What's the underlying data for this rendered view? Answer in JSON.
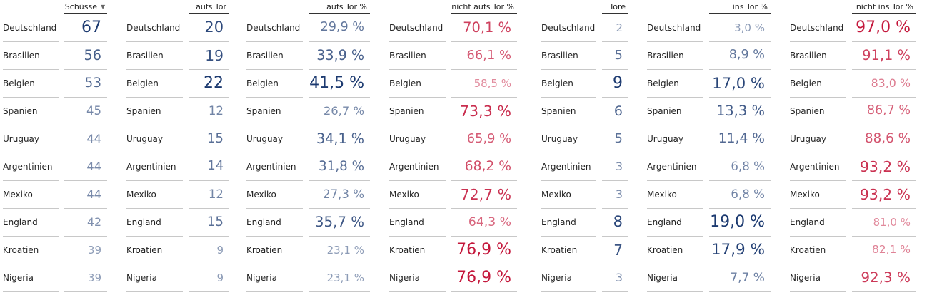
{
  "tables": [
    {
      "header": "Schüsse",
      "color": "#1c3a70",
      "rows": [
        [
          "Deutschland",
          "67"
        ],
        [
          "Brasilien",
          "56"
        ],
        [
          "Belgien",
          "53"
        ],
        [
          "Spanien",
          "45"
        ],
        [
          "Uruguay",
          "44"
        ],
        [
          "Argentinien",
          "44"
        ],
        [
          "Mexiko",
          "44"
        ],
        [
          "England",
          "42"
        ],
        [
          "Kroatien",
          "39"
        ],
        [
          "Nigeria",
          "39"
        ]
      ]
    },
    {
      "header": "aufs Tor",
      "color": "#1c3a70",
      "rows": [
        [
          "Deutschland",
          "20"
        ],
        [
          "Brasilien",
          "19"
        ],
        [
          "Belgien",
          "22"
        ],
        [
          "Spanien",
          "12"
        ],
        [
          "Uruguay",
          "15"
        ],
        [
          "Argentinien",
          "14"
        ],
        [
          "Mexiko",
          "12"
        ],
        [
          "England",
          "15"
        ],
        [
          "Kroatien",
          "9"
        ],
        [
          "Nigeria",
          "9"
        ]
      ]
    },
    {
      "header": "aufs Tor %",
      "color": "#1c3a70",
      "rows": [
        [
          "Deutschland",
          "29,9 %"
        ],
        [
          "Brasilien",
          "33,9 %"
        ],
        [
          "Belgien",
          "41,5 %"
        ],
        [
          "Spanien",
          "26,7 %"
        ],
        [
          "Uruguay",
          "34,1 %"
        ],
        [
          "Argentinien",
          "31,8 %"
        ],
        [
          "Mexiko",
          "27,3 %"
        ],
        [
          "England",
          "35,7 %"
        ],
        [
          "Kroatien",
          "23,1 %"
        ],
        [
          "Nigeria",
          "23,1 %"
        ]
      ]
    },
    {
      "header": "nicht aufs Tor %",
      "color": "#c4173b",
      "rows": [
        [
          "Deutschland",
          "70,1 %"
        ],
        [
          "Brasilien",
          "66,1 %"
        ],
        [
          "Belgien",
          "58,5 %"
        ],
        [
          "Spanien",
          "73,3 %"
        ],
        [
          "Uruguay",
          "65,9 %"
        ],
        [
          "Argentinien",
          "68,2 %"
        ],
        [
          "Mexiko",
          "72,7 %"
        ],
        [
          "England",
          "64,3 %"
        ],
        [
          "Kroatien",
          "76,9 %"
        ],
        [
          "Nigeria",
          "76,9 %"
        ]
      ]
    },
    {
      "header": "Tore",
      "color": "#1c3a70",
      "rows": [
        [
          "Deutschland",
          "2"
        ],
        [
          "Brasilien",
          "5"
        ],
        [
          "Belgien",
          "9"
        ],
        [
          "Spanien",
          "6"
        ],
        [
          "Uruguay",
          "5"
        ],
        [
          "Argentinien",
          "3"
        ],
        [
          "Mexiko",
          "3"
        ],
        [
          "England",
          "8"
        ],
        [
          "Kroatien",
          "7"
        ],
        [
          "Nigeria",
          "3"
        ]
      ]
    },
    {
      "header": "ins Tor %",
      "color": "#1c3a70",
      "rows": [
        [
          "Deutschland",
          "3,0 %"
        ],
        [
          "Brasilien",
          "8,9 %"
        ],
        [
          "Belgien",
          "17,0 %"
        ],
        [
          "Spanien",
          "13,3 %"
        ],
        [
          "Uruguay",
          "11,4 %"
        ],
        [
          "Argentinien",
          "6,8 %"
        ],
        [
          "Mexiko",
          "6,8 %"
        ],
        [
          "England",
          "19,0 %"
        ],
        [
          "Kroatien",
          "17,9 %"
        ],
        [
          "Nigeria",
          "7,7 %"
        ]
      ]
    },
    {
      "header": "nicht ins Tor %",
      "color": "#c4173b",
      "rows": [
        [
          "Deutschland",
          "97,0 %"
        ],
        [
          "Brasilien",
          "91,1 %"
        ],
        [
          "Belgien",
          "83,0 %"
        ],
        [
          "Spanien",
          "86,7 %"
        ],
        [
          "Uruguay",
          "88,6 %"
        ],
        [
          "Argentinien",
          "93,2 %"
        ],
        [
          "Mexiko",
          "93,2 %"
        ],
        [
          "England",
          "81,0 %"
        ],
        [
          "Kroatien",
          "82,1 %"
        ],
        [
          "Nigeria",
          "92,3 %"
        ]
      ]
    }
  ]
}
